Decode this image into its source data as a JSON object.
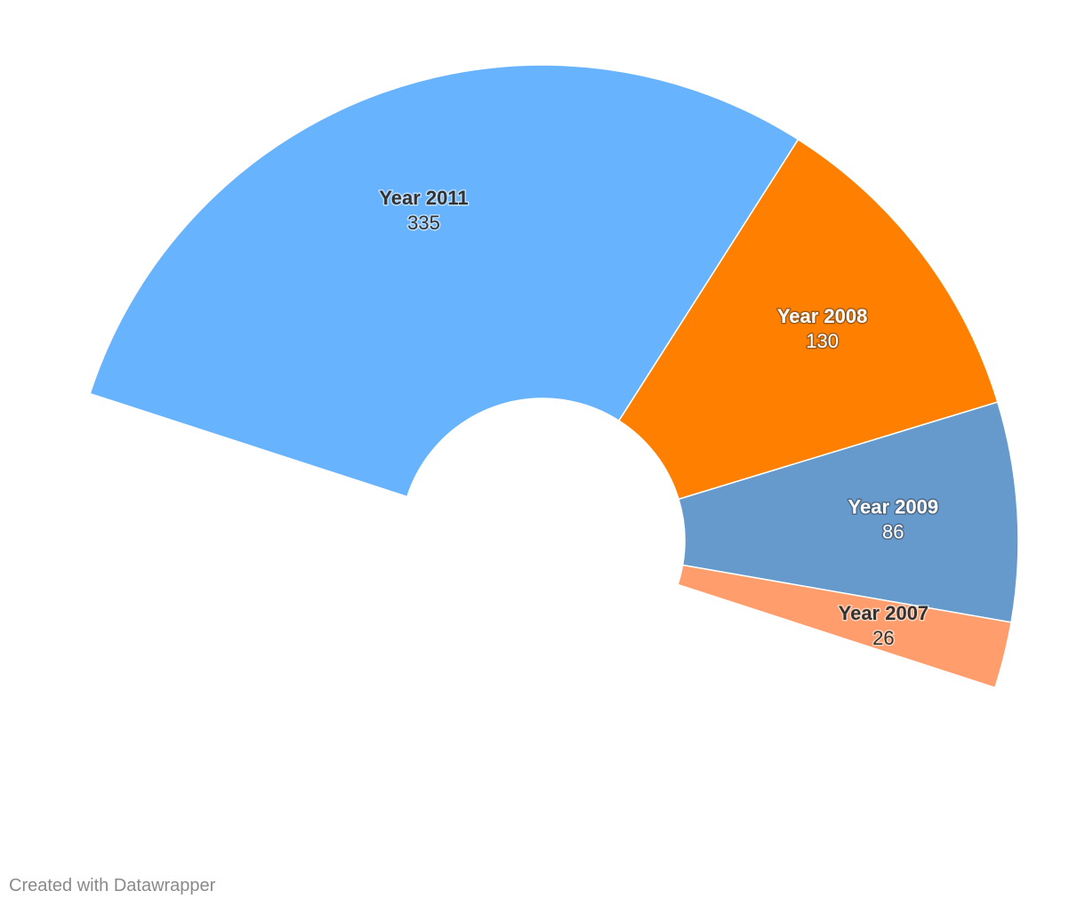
{
  "chart_data": {
    "type": "pie",
    "variant": "half-donut",
    "title": "",
    "slices": [
      {
        "label": "Year 2011",
        "value": 335,
        "color": "#68b3fd",
        "text_style": "dark"
      },
      {
        "label": "Year 2008",
        "value": 130,
        "color": "#ff7f00",
        "text_style": "light"
      },
      {
        "label": "Year 2009",
        "value": 86,
        "color": "#6699cc",
        "text_style": "light"
      },
      {
        "label": "Year 2007",
        "value": 26,
        "color": "#ff9d6c",
        "text_style": "dark"
      }
    ]
  },
  "footer": {
    "credit": "Created with Datawrapper"
  }
}
